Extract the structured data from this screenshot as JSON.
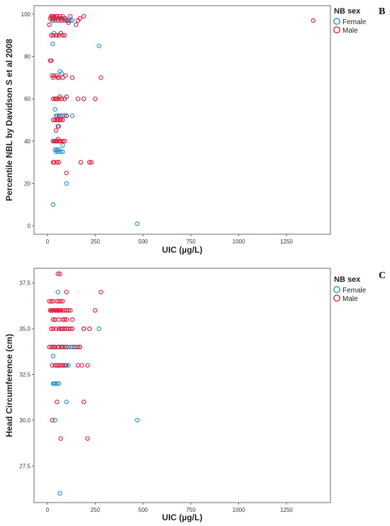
{
  "chart_data": [
    {
      "type": "scatter",
      "panel_label": "B",
      "xlabel": "UIC (µg/L)",
      "ylabel": "Percentile NBL by Davidson S et al 2008",
      "xlim": [
        -70,
        1480
      ],
      "ylim": [
        -4,
        104
      ],
      "xticks": [
        0,
        250,
        500,
        750,
        1000,
        1250
      ],
      "yticks": [
        0,
        20,
        40,
        60,
        80,
        100
      ],
      "legend": {
        "title": "NB sex",
        "position": "top-right outside"
      },
      "series": [
        {
          "name": "Female",
          "color": "#2196d3",
          "x": [
            25,
            30,
            32,
            35,
            40,
            55,
            60,
            70,
            80,
            90,
            95,
            100,
            105,
            110,
            120,
            130,
            270,
            28,
            50,
            35,
            65,
            75,
            40,
            45,
            50,
            55,
            60,
            70,
            80,
            90,
            100,
            130,
            35,
            40,
            45,
            50,
            55,
            60,
            70,
            80,
            100,
            30,
            470,
            35,
            60,
            80
          ],
          "y": [
            97,
            97,
            98,
            98,
            97,
            98,
            98,
            97,
            98,
            97,
            98,
            97,
            97,
            97,
            97,
            97,
            85,
            86,
            90,
            71,
            73,
            72,
            55,
            52,
            52,
            50,
            52,
            52,
            52,
            52,
            52,
            52,
            40,
            36,
            35,
            36,
            35,
            36,
            35,
            35,
            20,
            10,
            1,
            91,
            47,
            38
          ]
        },
        {
          "name": "Male",
          "color": "#e8213c",
          "x": [
            10,
            15,
            20,
            22,
            25,
            28,
            30,
            35,
            40,
            45,
            50,
            55,
            60,
            65,
            70,
            75,
            80,
            90,
            100,
            110,
            120,
            150,
            160,
            170,
            190,
            20,
            30,
            45,
            60,
            70,
            80,
            90,
            15,
            20,
            25,
            30,
            50,
            55,
            60,
            80,
            95,
            130,
            160,
            280,
            30,
            40,
            45,
            50,
            60,
            65,
            75,
            90,
            100,
            190,
            250,
            30,
            40,
            50,
            55,
            60,
            65,
            70,
            80,
            100,
            45,
            55,
            30,
            40,
            45,
            50,
            55,
            60,
            65,
            70,
            80,
            90,
            30,
            35,
            50,
            60,
            175,
            220,
            230,
            100,
            1390
          ],
          "y": [
            95,
            98,
            99,
            99,
            98,
            99,
            98,
            99,
            98,
            99,
            99,
            97,
            98,
            99,
            98,
            97,
            99,
            98,
            97,
            96,
            99,
            95,
            97,
            98,
            99,
            90,
            90,
            90,
            90,
            91,
            90,
            90,
            78,
            78,
            71,
            70,
            71,
            70,
            70,
            70,
            71,
            70,
            60,
            70,
            60,
            60,
            60,
            60,
            60,
            61,
            60,
            60,
            61,
            60,
            60,
            50,
            50,
            50,
            50,
            52,
            50,
            50,
            50,
            52,
            45,
            47,
            40,
            40,
            40,
            40,
            41,
            40,
            40,
            40,
            40,
            40,
            30,
            30,
            30,
            30,
            30,
            30,
            30,
            25,
            97
          ]
        }
      ]
    },
    {
      "type": "scatter",
      "panel_label": "C",
      "xlabel": "UIC (µg/L)",
      "ylabel": "Head Circumference (cm)",
      "xlim": [
        -70,
        1480
      ],
      "ylim": [
        25.5,
        38.3
      ],
      "xticks": [
        0,
        250,
        500,
        750,
        1000,
        1250
      ],
      "yticks": [
        27.5,
        30.0,
        32.5,
        35.0,
        37.5
      ],
      "ytick_labels": [
        "27.5",
        "30.0",
        "32.5",
        "35.0",
        "37.5"
      ],
      "legend": {
        "title": "NB sex",
        "position": "top-right outside"
      },
      "series": [
        {
          "name": "Female",
          "color": "#2196d3",
          "x": [
            55,
            40,
            35,
            60,
            70,
            80,
            90,
            100,
            110,
            120,
            130,
            270,
            30,
            40,
            50,
            60,
            70,
            80,
            90,
            100,
            110,
            35,
            30,
            40,
            50,
            60,
            100,
            40,
            470,
            65,
            150,
            170,
            75
          ],
          "y": [
            37,
            35.5,
            34,
            34,
            34,
            34,
            34,
            34,
            34,
            34,
            34,
            35,
            33.5,
            33,
            33,
            33,
            33,
            33,
            33,
            33,
            33,
            32,
            32,
            32,
            32,
            32,
            31,
            30,
            30,
            26,
            34,
            34,
            35
          ]
        },
        {
          "name": "Male",
          "color": "#e8213c",
          "x": [
            55,
            65,
            100,
            280,
            10,
            20,
            30,
            50,
            60,
            70,
            80,
            15,
            20,
            25,
            30,
            40,
            45,
            50,
            55,
            60,
            65,
            70,
            80,
            90,
            100,
            110,
            120,
            250,
            30,
            40,
            60,
            80,
            90,
            100,
            130,
            190,
            20,
            30,
            45,
            60,
            70,
            80,
            90,
            100,
            110,
            120,
            130,
            190,
            220,
            10,
            20,
            30,
            40,
            55,
            60,
            75,
            80,
            100,
            140,
            160,
            170,
            25,
            40,
            50,
            60,
            70,
            80,
            95,
            160,
            180,
            210,
            190,
            50,
            25,
            70,
            210
          ],
          "y": [
            38,
            38,
            37,
            37,
            36.5,
            36.5,
            36.5,
            36.5,
            36.5,
            36.5,
            36.5,
            36,
            36,
            36,
            36,
            36,
            36,
            36,
            36,
            36,
            36,
            36,
            36,
            36,
            36,
            36,
            36,
            36,
            35.5,
            35.5,
            35.5,
            35.5,
            35.5,
            35.5,
            35.5,
            35,
            35,
            35,
            35,
            35,
            35,
            35,
            35,
            35,
            35,
            35,
            35,
            35,
            35,
            34,
            34,
            34,
            34,
            34,
            34,
            34,
            34,
            34,
            34,
            34,
            34,
            33,
            33,
            33,
            33,
            33,
            33,
            33,
            33,
            33,
            33,
            31,
            31,
            30,
            29,
            29
          ]
        }
      ]
    }
  ]
}
